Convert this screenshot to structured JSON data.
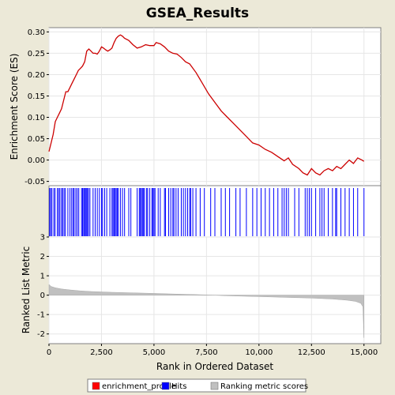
{
  "chart_data": {
    "type": "line",
    "title": "GSEA_Results",
    "x_label": "Rank in Ordered Dataset",
    "x_range": [
      0,
      15800
    ],
    "x_ticks": [
      {
        "value": 0,
        "label": "0"
      },
      {
        "value": 2500,
        "label": "2,500"
      },
      {
        "value": 5000,
        "label": "5,000"
      },
      {
        "value": 7500,
        "label": "7,500"
      },
      {
        "value": 10000,
        "label": "10,000"
      },
      {
        "value": 12500,
        "label": "12,500"
      },
      {
        "value": 15000,
        "label": "15,000"
      }
    ],
    "es_panel": {
      "y_label": "Enrichment Score (ES)",
      "y_range": [
        -0.06,
        0.31
      ],
      "y_ticks": [
        {
          "value": 0.3,
          "label": "0.30"
        },
        {
          "value": 0.25,
          "label": "0.25"
        },
        {
          "value": 0.2,
          "label": "0.20"
        },
        {
          "value": 0.15,
          "label": "0.15"
        },
        {
          "value": 0.1,
          "label": "0.10"
        },
        {
          "value": 0.05,
          "label": "0.05"
        },
        {
          "value": 0.0,
          "label": "0.00"
        },
        {
          "value": -0.05,
          "label": "-0.05"
        }
      ],
      "series": [
        {
          "name": "enrichment_profile",
          "color": "#cc0000",
          "points": [
            [
              0,
              0.02
            ],
            [
              100,
              0.04
            ],
            [
              200,
              0.06
            ],
            [
              300,
              0.09
            ],
            [
              400,
              0.1
            ],
            [
              500,
              0.11
            ],
            [
              600,
              0.12
            ],
            [
              700,
              0.14
            ],
            [
              800,
              0.16
            ],
            [
              900,
              0.16
            ],
            [
              1000,
              0.17
            ],
            [
              1100,
              0.18
            ],
            [
              1200,
              0.19
            ],
            [
              1300,
              0.2
            ],
            [
              1400,
              0.21
            ],
            [
              1500,
              0.215
            ],
            [
              1600,
              0.22
            ],
            [
              1700,
              0.23
            ],
            [
              1800,
              0.255
            ],
            [
              1900,
              0.26
            ],
            [
              2000,
              0.255
            ],
            [
              2100,
              0.25
            ],
            [
              2200,
              0.25
            ],
            [
              2300,
              0.248
            ],
            [
              2400,
              0.255
            ],
            [
              2500,
              0.265
            ],
            [
              2600,
              0.262
            ],
            [
              2700,
              0.258
            ],
            [
              2800,
              0.255
            ],
            [
              2900,
              0.258
            ],
            [
              3000,
              0.262
            ],
            [
              3100,
              0.275
            ],
            [
              3200,
              0.285
            ],
            [
              3300,
              0.29
            ],
            [
              3400,
              0.293
            ],
            [
              3500,
              0.29
            ],
            [
              3600,
              0.285
            ],
            [
              3800,
              0.28
            ],
            [
              4000,
              0.27
            ],
            [
              4200,
              0.262
            ],
            [
              4400,
              0.265
            ],
            [
              4600,
              0.27
            ],
            [
              4800,
              0.268
            ],
            [
              5000,
              0.268
            ],
            [
              5100,
              0.275
            ],
            [
              5300,
              0.272
            ],
            [
              5500,
              0.265
            ],
            [
              5700,
              0.255
            ],
            [
              5900,
              0.25
            ],
            [
              6100,
              0.248
            ],
            [
              6300,
              0.24
            ],
            [
              6500,
              0.23
            ],
            [
              6700,
              0.225
            ],
            [
              7000,
              0.205
            ],
            [
              7300,
              0.18
            ],
            [
              7600,
              0.155
            ],
            [
              7900,
              0.135
            ],
            [
              8200,
              0.115
            ],
            [
              8500,
              0.1
            ],
            [
              8800,
              0.085
            ],
            [
              9100,
              0.07
            ],
            [
              9400,
              0.055
            ],
            [
              9700,
              0.04
            ],
            [
              10000,
              0.035
            ],
            [
              10300,
              0.025
            ],
            [
              10600,
              0.018
            ],
            [
              10900,
              0.008
            ],
            [
              11200,
              -0.002
            ],
            [
              11400,
              0.005
            ],
            [
              11600,
              -0.01
            ],
            [
              11900,
              -0.02
            ],
            [
              12100,
              -0.03
            ],
            [
              12300,
              -0.035
            ],
            [
              12500,
              -0.02
            ],
            [
              12700,
              -0.03
            ],
            [
              12900,
              -0.035
            ],
            [
              13100,
              -0.025
            ],
            [
              13300,
              -0.02
            ],
            [
              13500,
              -0.025
            ],
            [
              13700,
              -0.015
            ],
            [
              13900,
              -0.02
            ],
            [
              14100,
              -0.01
            ],
            [
              14300,
              0.0
            ],
            [
              14500,
              -0.008
            ],
            [
              14700,
              0.005
            ],
            [
              14900,
              0.0
            ],
            [
              15000,
              -0.003
            ]
          ]
        }
      ]
    },
    "hits_panel": {
      "series_name": "Hits",
      "color": "#0000ff",
      "positions": [
        30,
        80,
        140,
        230,
        290,
        400,
        460,
        520,
        600,
        650,
        720,
        780,
        900,
        1000,
        1080,
        1150,
        1200,
        1280,
        1350,
        1420,
        1550,
        1600,
        1650,
        1700,
        1730,
        1780,
        1830,
        1880,
        1950,
        2100,
        2200,
        2300,
        2400,
        2500,
        2550,
        2650,
        2750,
        2900,
        3000,
        3050,
        3100,
        3150,
        3200,
        3250,
        3300,
        3400,
        3500,
        3600,
        3800,
        3900,
        4200,
        4300,
        4350,
        4400,
        4450,
        4500,
        4550,
        4650,
        4700,
        4800,
        4900,
        4950,
        5000,
        5050,
        5200,
        5300,
        5500,
        5550,
        5700,
        5800,
        5900,
        5950,
        6050,
        6150,
        6300,
        6400,
        6500,
        6600,
        6700,
        6750,
        6850,
        7000,
        7200,
        7400,
        7700,
        7900,
        8200,
        8400,
        8600,
        8900,
        9100,
        9400,
        9700,
        9900,
        10100,
        10300,
        10500,
        10700,
        10900,
        11100,
        11200,
        11300,
        11400,
        11700,
        11900,
        12200,
        12300,
        12400,
        12500,
        12700,
        12900,
        13000,
        13100,
        13300,
        13500,
        13650,
        13700,
        13900,
        14100,
        14300,
        14500,
        14700,
        15000
      ]
    },
    "rank_panel": {
      "y_label": "Ranked List Metric",
      "series_name": "Ranking metric scores",
      "color": "#c0c0c0",
      "y_range": [
        -2.5,
        3.0
      ],
      "y_ticks": [
        {
          "value": 3,
          "label": "3"
        },
        {
          "value": 2,
          "label": "2"
        },
        {
          "value": 1,
          "label": "1"
        },
        {
          "value": 0,
          "label": "0"
        },
        {
          "value": -1,
          "label": "-1"
        },
        {
          "value": -2,
          "label": "-2"
        }
      ],
      "points": [
        [
          0,
          0.55
        ],
        [
          100,
          0.45
        ],
        [
          300,
          0.38
        ],
        [
          600,
          0.32
        ],
        [
          1000,
          0.27
        ],
        [
          1500,
          0.22
        ],
        [
          2000,
          0.19
        ],
        [
          3000,
          0.15
        ],
        [
          4000,
          0.12
        ],
        [
          5000,
          0.09
        ],
        [
          6000,
          0.06
        ],
        [
          7000,
          0.03
        ],
        [
          7800,
          0.0
        ],
        [
          8500,
          -0.03
        ],
        [
          9500,
          -0.06
        ],
        [
          10500,
          -0.09
        ],
        [
          11500,
          -0.12
        ],
        [
          12500,
          -0.15
        ],
        [
          13500,
          -0.2
        ],
        [
          14200,
          -0.26
        ],
        [
          14600,
          -0.32
        ],
        [
          14850,
          -0.42
        ],
        [
          14950,
          -0.6
        ],
        [
          15000,
          -2.2
        ]
      ]
    },
    "legend": [
      {
        "label": "enrichment_profile",
        "color": "#ff0000"
      },
      {
        "label": "Hits",
        "color": "#0000ff"
      },
      {
        "label": "Ranking metric scores",
        "color": "#c0c0c0"
      }
    ]
  }
}
